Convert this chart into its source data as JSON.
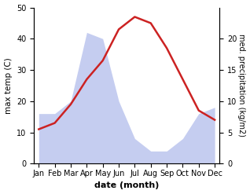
{
  "months": [
    "Jan",
    "Feb",
    "Mar",
    "Apr",
    "May",
    "Jun",
    "Jul",
    "Aug",
    "Sep",
    "Oct",
    "Nov",
    "Dec"
  ],
  "temp": [
    11,
    13,
    19,
    27,
    33,
    43,
    47,
    45,
    37,
    27,
    17,
    14
  ],
  "precip": [
    8,
    8,
    10,
    21,
    20,
    10,
    4,
    2,
    2,
    4,
    8,
    9
  ],
  "temp_color": "#cc2222",
  "precip_fill_color": "#c5cdf0",
  "temp_ylim": [
    0,
    50
  ],
  "precip_ylim": [
    0,
    25
  ],
  "temp_yticks": [
    0,
    10,
    20,
    30,
    40,
    50
  ],
  "precip_yticks": [
    0,
    5,
    10,
    15,
    20
  ],
  "ylabel_left": "max temp (C)",
  "ylabel_right": "med. precipitation (kg/m2)",
  "xlabel": "date (month)",
  "bg_color": "#ffffff"
}
